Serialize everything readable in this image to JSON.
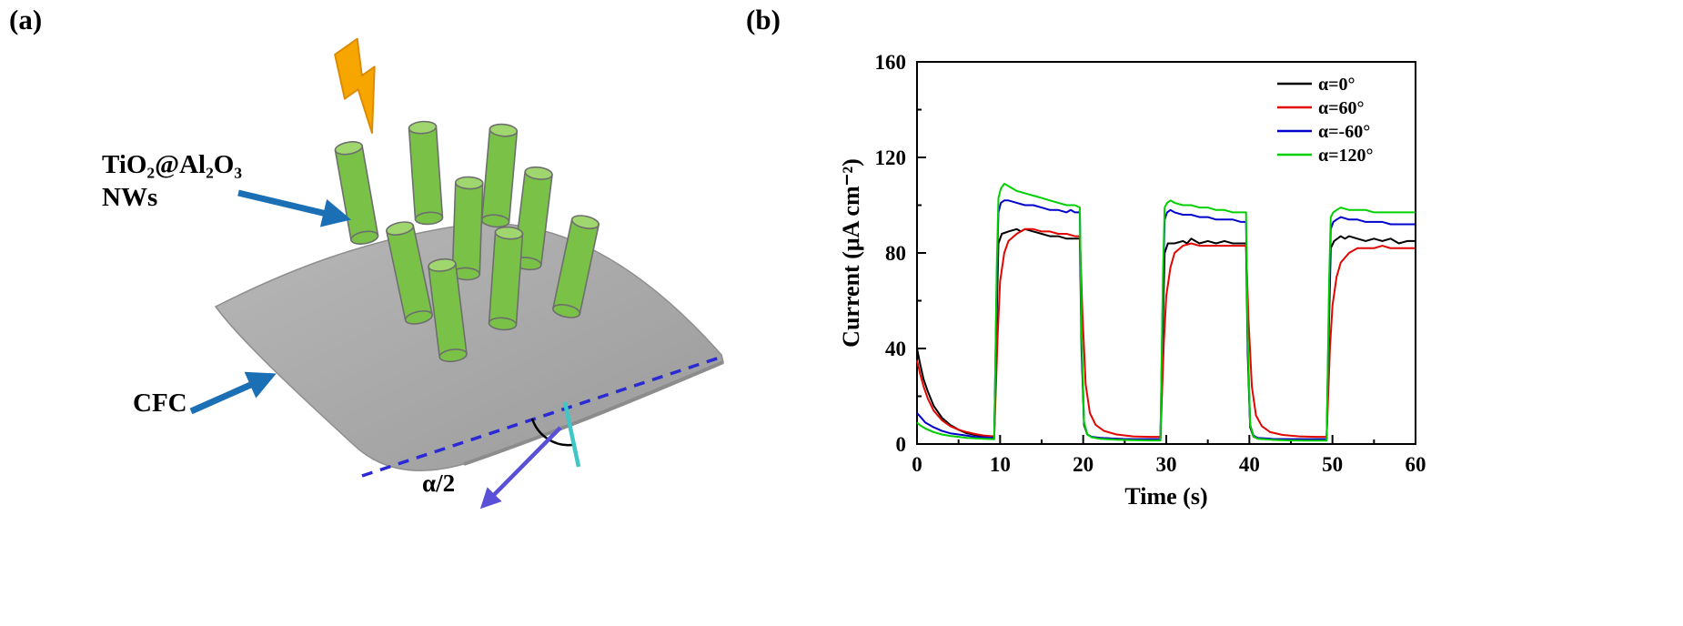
{
  "figure": {
    "panel_a": {
      "label": "(a)",
      "nw_label_line1": "TiO₂@Al₂O₃",
      "nw_label_line2": "NWs",
      "cfc_label": "CFC",
      "angle_label": "α/2",
      "colors": {
        "nanowire_body": "#79C247",
        "nanowire_top": "#A0D66E",
        "sheet": "#ACACAC",
        "lightning": "#F7A600",
        "label_arrow": "#1B6FB5",
        "dashed_axis": "#2A2AD4",
        "normal_line": "#3FC6C6",
        "bend_arrow": "#5A50D8"
      }
    },
    "panel_b": {
      "label": "(b)"
    }
  },
  "chart_data": {
    "type": "line",
    "title": "",
    "xlabel": "Time (s)",
    "ylabel": "Current (μA cm⁻²)",
    "xlim": [
      0,
      60
    ],
    "ylim": [
      0,
      160
    ],
    "xticks": [
      0,
      10,
      20,
      30,
      40,
      50,
      60
    ],
    "yticks": [
      0,
      40,
      80,
      120,
      160
    ],
    "x_minor_step": 5,
    "y_minor_step": 20,
    "grid": false,
    "legend_position": "top-right",
    "series": [
      {
        "name": "α=0°",
        "color": "#000000",
        "points": [
          [
            0,
            40
          ],
          [
            0.4,
            33
          ],
          [
            0.8,
            27
          ],
          [
            1.3,
            22
          ],
          [
            2,
            16
          ],
          [
            3,
            11
          ],
          [
            4,
            8
          ],
          [
            5,
            6
          ],
          [
            6,
            4.5
          ],
          [
            7,
            3.8
          ],
          [
            8,
            3.2
          ],
          [
            9.3,
            3
          ],
          [
            9.6,
            55
          ],
          [
            9.8,
            84
          ],
          [
            10.2,
            88
          ],
          [
            11,
            89
          ],
          [
            12,
            90
          ],
          [
            12.5,
            89
          ],
          [
            13,
            90
          ],
          [
            14,
            89
          ],
          [
            15,
            88
          ],
          [
            16,
            87
          ],
          [
            17,
            87
          ],
          [
            18,
            86
          ],
          [
            19,
            86
          ],
          [
            19.6,
            86
          ],
          [
            19.8,
            40
          ],
          [
            20.1,
            8
          ],
          [
            20.5,
            4
          ],
          [
            21,
            3
          ],
          [
            22,
            2.6
          ],
          [
            24,
            2.2
          ],
          [
            26,
            2
          ],
          [
            28,
            2
          ],
          [
            29.3,
            2
          ],
          [
            29.6,
            50
          ],
          [
            29.8,
            80
          ],
          [
            30.2,
            84
          ],
          [
            31,
            84
          ],
          [
            32,
            85
          ],
          [
            32.5,
            84
          ],
          [
            33,
            86
          ],
          [
            34,
            84
          ],
          [
            35,
            85
          ],
          [
            36,
            84
          ],
          [
            37,
            85
          ],
          [
            38,
            84
          ],
          [
            39,
            84
          ],
          [
            39.6,
            84
          ],
          [
            39.8,
            38
          ],
          [
            40.1,
            7
          ],
          [
            40.5,
            3
          ],
          [
            41,
            2.4
          ],
          [
            43,
            2
          ],
          [
            45,
            2
          ],
          [
            47,
            2
          ],
          [
            49.3,
            2
          ],
          [
            49.6,
            52
          ],
          [
            49.8,
            82
          ],
          [
            50.2,
            85
          ],
          [
            51,
            87
          ],
          [
            51.5,
            86
          ],
          [
            52,
            87
          ],
          [
            53,
            86
          ],
          [
            54,
            85
          ],
          [
            55,
            86
          ],
          [
            56,
            85
          ],
          [
            57,
            86
          ],
          [
            58,
            84
          ],
          [
            59,
            85
          ],
          [
            60,
            85
          ]
        ]
      },
      {
        "name": "α=60°",
        "color": "#E10600",
        "points": [
          [
            0,
            35
          ],
          [
            0.4,
            29
          ],
          [
            0.8,
            24
          ],
          [
            1.3,
            19
          ],
          [
            2,
            14
          ],
          [
            3,
            10
          ],
          [
            4,
            7.5
          ],
          [
            5,
            6
          ],
          [
            6,
            5
          ],
          [
            7,
            4.2
          ],
          [
            8,
            3.6
          ],
          [
            9.3,
            3.2
          ],
          [
            9.7,
            45
          ],
          [
            10,
            68
          ],
          [
            10.5,
            80
          ],
          [
            11,
            85
          ],
          [
            12,
            88
          ],
          [
            13,
            90
          ],
          [
            14,
            90
          ],
          [
            15,
            89
          ],
          [
            16,
            89
          ],
          [
            17,
            88
          ],
          [
            18,
            88
          ],
          [
            19,
            87
          ],
          [
            19.6,
            87
          ],
          [
            19.9,
            55
          ],
          [
            20.3,
            25
          ],
          [
            20.8,
            13
          ],
          [
            21.5,
            8
          ],
          [
            22.5,
            5.5
          ],
          [
            24,
            4
          ],
          [
            26,
            3.2
          ],
          [
            28,
            3
          ],
          [
            29.3,
            3
          ],
          [
            29.7,
            42
          ],
          [
            30,
            62
          ],
          [
            30.5,
            74
          ],
          [
            31,
            80
          ],
          [
            32,
            83
          ],
          [
            33,
            84
          ],
          [
            34,
            83
          ],
          [
            35,
            83
          ],
          [
            36,
            83
          ],
          [
            37,
            83
          ],
          [
            38,
            83
          ],
          [
            39,
            83
          ],
          [
            39.6,
            83
          ],
          [
            39.9,
            52
          ],
          [
            40.3,
            24
          ],
          [
            40.8,
            12
          ],
          [
            41.5,
            7.5
          ],
          [
            42.5,
            5
          ],
          [
            44,
            3.8
          ],
          [
            46,
            3.2
          ],
          [
            48,
            3
          ],
          [
            49.3,
            3
          ],
          [
            49.7,
            40
          ],
          [
            50,
            58
          ],
          [
            50.5,
            70
          ],
          [
            51,
            76
          ],
          [
            52,
            80
          ],
          [
            53,
            82
          ],
          [
            54,
            82
          ],
          [
            55,
            82
          ],
          [
            56,
            83
          ],
          [
            57,
            82
          ],
          [
            58,
            82
          ],
          [
            59,
            82
          ],
          [
            60,
            82
          ]
        ]
      },
      {
        "name": "α=-60°",
        "color": "#0000CD",
        "points": [
          [
            0,
            13
          ],
          [
            0.5,
            11
          ],
          [
            1,
            9
          ],
          [
            2,
            7
          ],
          [
            3,
            5.5
          ],
          [
            4,
            4.5
          ],
          [
            5,
            4
          ],
          [
            6,
            3.5
          ],
          [
            7,
            3
          ],
          [
            8,
            2.8
          ],
          [
            9.3,
            2.6
          ],
          [
            9.6,
            70
          ],
          [
            9.8,
            97
          ],
          [
            10.1,
            101
          ],
          [
            10.5,
            102
          ],
          [
            11,
            102
          ],
          [
            12,
            101
          ],
          [
            13,
            100
          ],
          [
            14,
            100
          ],
          [
            15,
            99
          ],
          [
            16,
            98
          ],
          [
            17,
            98
          ],
          [
            18,
            97
          ],
          [
            18.5,
            98
          ],
          [
            19,
            97
          ],
          [
            19.6,
            97
          ],
          [
            19.8,
            45
          ],
          [
            20.1,
            9
          ],
          [
            20.5,
            4
          ],
          [
            21,
            3
          ],
          [
            22,
            2.6
          ],
          [
            24,
            2.2
          ],
          [
            26,
            2
          ],
          [
            28,
            2
          ],
          [
            29.3,
            2
          ],
          [
            29.6,
            65
          ],
          [
            29.8,
            94
          ],
          [
            30.1,
            97
          ],
          [
            30.5,
            98
          ],
          [
            31,
            97
          ],
          [
            32,
            96
          ],
          [
            33,
            96
          ],
          [
            34,
            95
          ],
          [
            35,
            95
          ],
          [
            36,
            94
          ],
          [
            37,
            94
          ],
          [
            38,
            94
          ],
          [
            39,
            93
          ],
          [
            39.6,
            93
          ],
          [
            39.8,
            42
          ],
          [
            40.1,
            8
          ],
          [
            40.5,
            3.5
          ],
          [
            41,
            2.6
          ],
          [
            43,
            2.1
          ],
          [
            45,
            2
          ],
          [
            47,
            2
          ],
          [
            49.3,
            2
          ],
          [
            49.6,
            62
          ],
          [
            49.8,
            90
          ],
          [
            50.1,
            93
          ],
          [
            50.5,
            94
          ],
          [
            51,
            95
          ],
          [
            52,
            94
          ],
          [
            53,
            94
          ],
          [
            54,
            93
          ],
          [
            55,
            93
          ],
          [
            56,
            93
          ],
          [
            57,
            92
          ],
          [
            58,
            92
          ],
          [
            59,
            92
          ],
          [
            60,
            92
          ]
        ]
      },
      {
        "name": "α=120°",
        "color": "#00D000",
        "points": [
          [
            0,
            9
          ],
          [
            0.5,
            7.5
          ],
          [
            1,
            6.5
          ],
          [
            2,
            5
          ],
          [
            3,
            4
          ],
          [
            4,
            3.4
          ],
          [
            5,
            3
          ],
          [
            6,
            2.6
          ],
          [
            7,
            2.4
          ],
          [
            8,
            2.2
          ],
          [
            9.3,
            2
          ],
          [
            9.6,
            75
          ],
          [
            9.8,
            103
          ],
          [
            10.1,
            107
          ],
          [
            10.5,
            109
          ],
          [
            11,
            108
          ],
          [
            11.5,
            107
          ],
          [
            12,
            106
          ],
          [
            13,
            105
          ],
          [
            14,
            104
          ],
          [
            15,
            103
          ],
          [
            16,
            102
          ],
          [
            17,
            101
          ],
          [
            18,
            100
          ],
          [
            19,
            100
          ],
          [
            19.6,
            99
          ],
          [
            19.8,
            48
          ],
          [
            20.1,
            9
          ],
          [
            20.5,
            4
          ],
          [
            21,
            2.8
          ],
          [
            22,
            2.2
          ],
          [
            24,
            1.8
          ],
          [
            26,
            1.6
          ],
          [
            28,
            1.5
          ],
          [
            29.3,
            1.5
          ],
          [
            29.6,
            70
          ],
          [
            29.8,
            99
          ],
          [
            30.1,
            101
          ],
          [
            30.5,
            102
          ],
          [
            31,
            101
          ],
          [
            32,
            100
          ],
          [
            33,
            100
          ],
          [
            34,
            99
          ],
          [
            35,
            99
          ],
          [
            36,
            98
          ],
          [
            37,
            98
          ],
          [
            38,
            97
          ],
          [
            39,
            97
          ],
          [
            39.6,
            97
          ],
          [
            39.8,
            45
          ],
          [
            40.1,
            8
          ],
          [
            40.5,
            3.2
          ],
          [
            41,
            2.2
          ],
          [
            43,
            1.7
          ],
          [
            45,
            1.5
          ],
          [
            47,
            1.4
          ],
          [
            49.3,
            1.4
          ],
          [
            49.6,
            68
          ],
          [
            49.8,
            95
          ],
          [
            50.1,
            97
          ],
          [
            50.5,
            98
          ],
          [
            51,
            99
          ],
          [
            52,
            98
          ],
          [
            53,
            98
          ],
          [
            54,
            98
          ],
          [
            55,
            97
          ],
          [
            56,
            97
          ],
          [
            57,
            97
          ],
          [
            58,
            97
          ],
          [
            59,
            97
          ],
          [
            60,
            97
          ]
        ]
      }
    ]
  }
}
